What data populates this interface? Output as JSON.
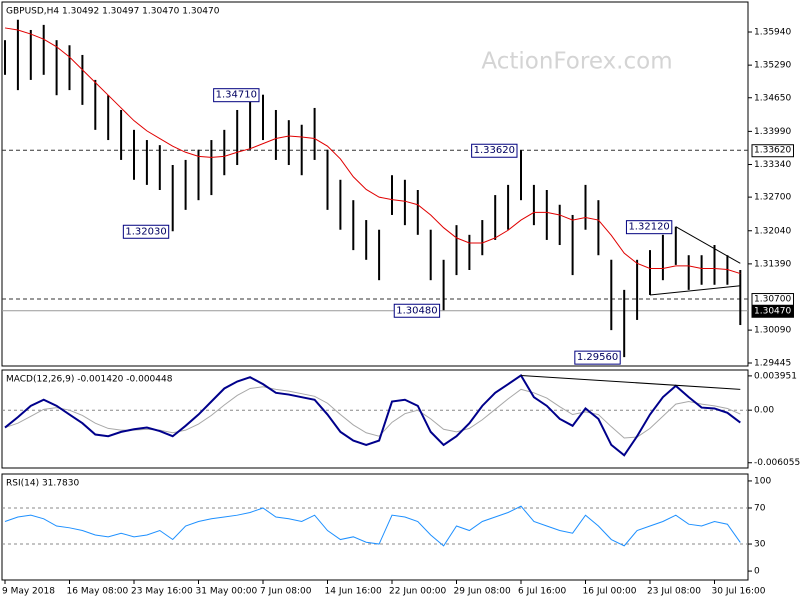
{
  "chart_data": [
    {
      "type": "range_bar",
      "title": "GBPUSD,H4  1.30492 1.30497 1.30470 1.30470",
      "watermark": "ActionForex.com",
      "color": "#000000",
      "high": [
        1.3578,
        1.3618,
        1.3598,
        1.3608,
        1.3578,
        1.3568,
        1.3549,
        1.35,
        1.347,
        1.3441,
        1.3402,
        1.3382,
        1.3372,
        1.3333,
        1.3343,
        1.3363,
        1.3382,
        1.3402,
        1.3441,
        1.3461,
        1.3471,
        1.3441,
        1.3421,
        1.3412,
        1.3445,
        1.3363,
        1.3304,
        1.3264,
        1.3225,
        1.3206,
        1.3313,
        1.3304,
        1.3284,
        1.3206,
        1.3147,
        1.3215,
        1.3196,
        1.3225,
        1.3274,
        1.3294,
        1.3362,
        1.3294,
        1.3284,
        1.3255,
        1.3235,
        1.3294,
        1.3264,
        1.3147,
        1.3088,
        1.3147,
        1.3166,
        1.3196,
        1.3212,
        1.3156,
        1.3156,
        1.3176,
        1.3156,
        1.3127
      ],
      "low": [
        1.351,
        1.348,
        1.35,
        1.351,
        1.347,
        1.348,
        1.3451,
        1.3402,
        1.3382,
        1.3343,
        1.3304,
        1.3294,
        1.3284,
        1.3203,
        1.3245,
        1.3264,
        1.3274,
        1.3313,
        1.3333,
        1.3363,
        1.3382,
        1.3343,
        1.3333,
        1.3313,
        1.3343,
        1.3245,
        1.3206,
        1.3166,
        1.3147,
        1.3107,
        1.3235,
        1.3215,
        1.3196,
        1.3107,
        1.3048,
        1.3117,
        1.3127,
        1.3156,
        1.3186,
        1.3206,
        1.3264,
        1.3215,
        1.3186,
        1.3176,
        1.3117,
        1.3206,
        1.3156,
        1.3009,
        1.2956,
        1.3029,
        1.3078,
        1.3107,
        1.3137,
        1.3088,
        1.3098,
        1.3098,
        1.3098,
        1.3019
      ],
      "ma": {
        "color": "#e00000",
        "values": [
          1.3602,
          1.3598,
          1.359,
          1.358,
          1.3565,
          1.3545,
          1.352,
          1.3495,
          1.347,
          1.3445,
          1.342,
          1.34,
          1.3385,
          1.337,
          1.3358,
          1.335,
          1.3348,
          1.335,
          1.3358,
          1.3365,
          1.3375,
          1.3385,
          1.339,
          1.3388,
          1.3385,
          1.337,
          1.3345,
          1.331,
          1.3285,
          1.327,
          1.3265,
          1.3262,
          1.3255,
          1.3235,
          1.321,
          1.319,
          1.318,
          1.318,
          1.319,
          1.3205,
          1.3225,
          1.324,
          1.324,
          1.3235,
          1.3225,
          1.323,
          1.3225,
          1.3195,
          1.316,
          1.314,
          1.313,
          1.313,
          1.3135,
          1.3135,
          1.313,
          1.313,
          1.3128,
          1.312
        ]
      },
      "ylim": [
        1.29386,
        1.36529
      ],
      "yticks": [
        {
          "value": 1.3594,
          "label": "1.35940"
        },
        {
          "value": 1.3529,
          "label": "1.35290"
        },
        {
          "value": 1.3465,
          "label": "1.34650"
        },
        {
          "value": 1.3399,
          "label": "1.33990"
        },
        {
          "value": 1.3334,
          "label": "1.33340"
        },
        {
          "value": 1.327,
          "label": "1.32700"
        },
        {
          "value": 1.3204,
          "label": "1.32040"
        },
        {
          "value": 1.3139,
          "label": "1.31390"
        },
        {
          "value": 1.3009,
          "label": "1.30090"
        },
        1.29445
      ],
      "hlines": [
        {
          "value": 1.3362,
          "label": "1.33620",
          "style": "dashed"
        },
        {
          "value": 1.307,
          "label": "1.30700",
          "style": "dashed"
        },
        {
          "value": 1.3047,
          "label": "1.30470",
          "style": "current"
        }
      ],
      "annotations": [
        {
          "label": "1.34710",
          "x": 20,
          "value": 1.3471
        },
        {
          "label": "1.32030",
          "x": 13,
          "value": 1.3203
        },
        {
          "label": "1.33620",
          "x": 40,
          "value": 1.3362
        },
        {
          "label": "1.30480",
          "x": 34,
          "value": 1.3048
        },
        {
          "label": "1.29560",
          "x": 48,
          "value": 1.2956
        },
        {
          "label": "1.32120",
          "x": 52,
          "value": 1.3212
        }
      ],
      "trendlines": [
        [
          52,
          1.3212,
          57,
          1.314
        ],
        [
          50,
          1.3078,
          57,
          1.3096
        ]
      ]
    },
    {
      "type": "macd",
      "title": "MACD(12,26,9) -0.001420 -0.000448",
      "series": [
        {
          "color": "#00008b",
          "values": [
            -0.002,
            -0.0008,
            0.0005,
            0.0012,
            0.0005,
            -0.0005,
            -0.0015,
            -0.0028,
            -0.003,
            -0.0025,
            -0.0022,
            -0.002,
            -0.0024,
            -0.003,
            -0.0018,
            -0.0005,
            0.001,
            0.0025,
            0.0033,
            0.0038,
            0.003,
            0.002,
            0.0018,
            0.0015,
            0.0012,
            -0.0005,
            -0.0025,
            -0.0035,
            -0.004,
            -0.0035,
            0.001,
            0.0012,
            0.0005,
            -0.0025,
            -0.004,
            -0.003,
            -0.0015,
            0.0005,
            0.002,
            0.003,
            0.004,
            0.0015,
            0.0005,
            -0.001,
            -0.0018,
            0.0002,
            -0.001,
            -0.004,
            -0.0052,
            -0.003,
            -0.0005,
            0.0015,
            0.0028,
            0.0015,
            0.0003,
            0.0002,
            -0.0003,
            -0.00142
          ]
        },
        {
          "color": "#a8a8a8",
          "values": [
            -0.002,
            -0.0015,
            -0.0007,
            0.0001,
            0.0003,
            0,
            -0.0006,
            -0.0015,
            -0.0021,
            -0.0023,
            -0.0023,
            -0.0022,
            -0.0023,
            -0.0026,
            -0.0023,
            -0.0016,
            -0.0006,
            0.0006,
            0.0017,
            0.0025,
            0.0027,
            0.0024,
            0.0022,
            0.0019,
            0.0016,
            0.0008,
            -0.0005,
            -0.0017,
            -0.0026,
            -0.003,
            -0.0014,
            -0.0004,
            0,
            -0.001,
            -0.0022,
            -0.0025,
            -0.0021,
            -0.0011,
            0.0001,
            0.0013,
            0.0024,
            0.002,
            0.0014,
            0.0004,
            -0.0005,
            -0.0002,
            -0.0005,
            -0.0019,
            -0.0032,
            -0.0031,
            -0.0021,
            -0.0007,
            0.0007,
            0.001,
            0.0007,
            0.0005,
            0.0002,
            -0.000448
          ]
        }
      ],
      "ylim": [
        -0.00666,
        0.00463
      ],
      "yticks": [
        0.003951,
        {
          "value": 0,
          "label": "0.00"
        },
        -0.006055
      ],
      "levels": [
        0
      ],
      "trendlines": [
        [
          40,
          0.004,
          57,
          0.0024
        ]
      ]
    },
    {
      "type": "line",
      "title": "RSI(14) 31.7830",
      "color": "#1e90ff",
      "values": [
        55,
        60,
        62,
        58,
        50,
        48,
        45,
        40,
        38,
        42,
        38,
        40,
        45,
        35,
        50,
        55,
        58,
        60,
        62,
        65,
        70,
        60,
        58,
        55,
        62,
        45,
        35,
        38,
        32,
        30,
        62,
        60,
        55,
        40,
        28,
        50,
        45,
        55,
        60,
        65,
        72,
        55,
        50,
        45,
        42,
        62,
        50,
        35,
        28,
        45,
        50,
        55,
        62,
        52,
        50,
        55,
        52,
        31.783
      ],
      "ylim": [
        -9.9,
        107.7
      ],
      "yticks": [
        0,
        30,
        70,
        100
      ],
      "levels": [
        30,
        70
      ],
      "categories": [
        "9 May 2018",
        null,
        null,
        null,
        null,
        "16 May 08:00",
        null,
        null,
        null,
        null,
        "23 May 16:00",
        null,
        null,
        null,
        null,
        "31 May 00:00",
        null,
        null,
        null,
        null,
        "7 Jun 08:00",
        null,
        null,
        null,
        null,
        "14 Jun 16:00",
        null,
        null,
        null,
        null,
        "22 Jun 00:00",
        null,
        null,
        null,
        null,
        "29 Jun 08:00",
        null,
        null,
        null,
        null,
        "6 Jul 16:00",
        null,
        null,
        null,
        null,
        "16 Jul 00:00",
        null,
        null,
        null,
        null,
        "23 Jul 08:00",
        null,
        null,
        null,
        null,
        "30 Jul 16:00",
        null,
        null
      ]
    }
  ]
}
